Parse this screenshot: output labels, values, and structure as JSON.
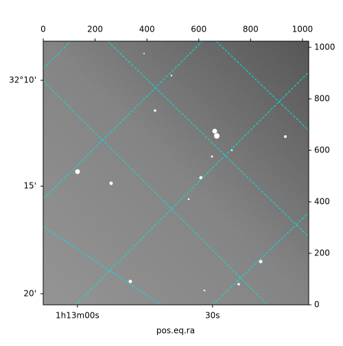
{
  "chart_data": {
    "type": "image",
    "xlabel": "pos.eq.ra",
    "xlim": [
      0,
      1024
    ],
    "ylim": [
      0,
      1024
    ],
    "xticks": [
      0,
      200,
      400,
      600,
      800,
      1000
    ],
    "yticks": [
      0,
      200,
      400,
      600,
      800,
      1000
    ],
    "dec_ticks": [
      {
        "value": 872,
        "label": "32°10'"
      },
      {
        "value": 461,
        "label": "15'"
      },
      {
        "value": 43,
        "label": "20'"
      }
    ],
    "ra_ticks": [
      {
        "value": 132,
        "label": "1h13m00s"
      },
      {
        "value": 653,
        "label": "30s"
      }
    ],
    "grid_color": "#00e5e5"
  }
}
